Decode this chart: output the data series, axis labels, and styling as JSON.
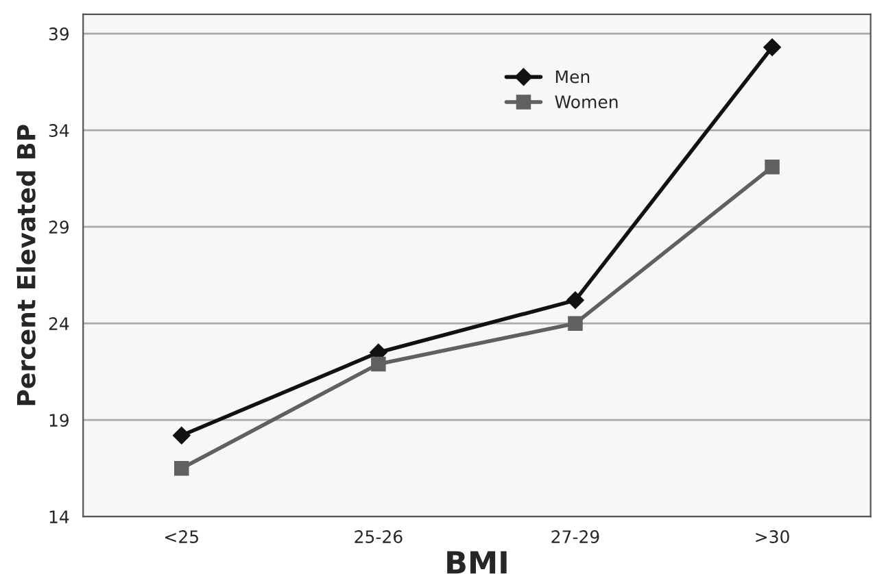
{
  "chart_data": {
    "type": "line",
    "xlabel": "BMI",
    "ylabel": "Percent Elevated BP",
    "categories": [
      "<25",
      "25-26",
      "27-29",
      ">30"
    ],
    "series": [
      {
        "name": "Men",
        "color": "#111111",
        "marker": "diamond",
        "values": [
          18.2,
          22.5,
          25.2,
          38.3
        ]
      },
      {
        "name": "Women",
        "color": "#606060",
        "marker": "square",
        "values": [
          16.5,
          21.9,
          24.0,
          32.1
        ]
      }
    ],
    "ylim": [
      14,
      40
    ],
    "yticks": [
      14,
      19,
      24,
      29,
      34,
      39
    ],
    "grid": "y",
    "legend": "top right",
    "line_style": "solid"
  }
}
